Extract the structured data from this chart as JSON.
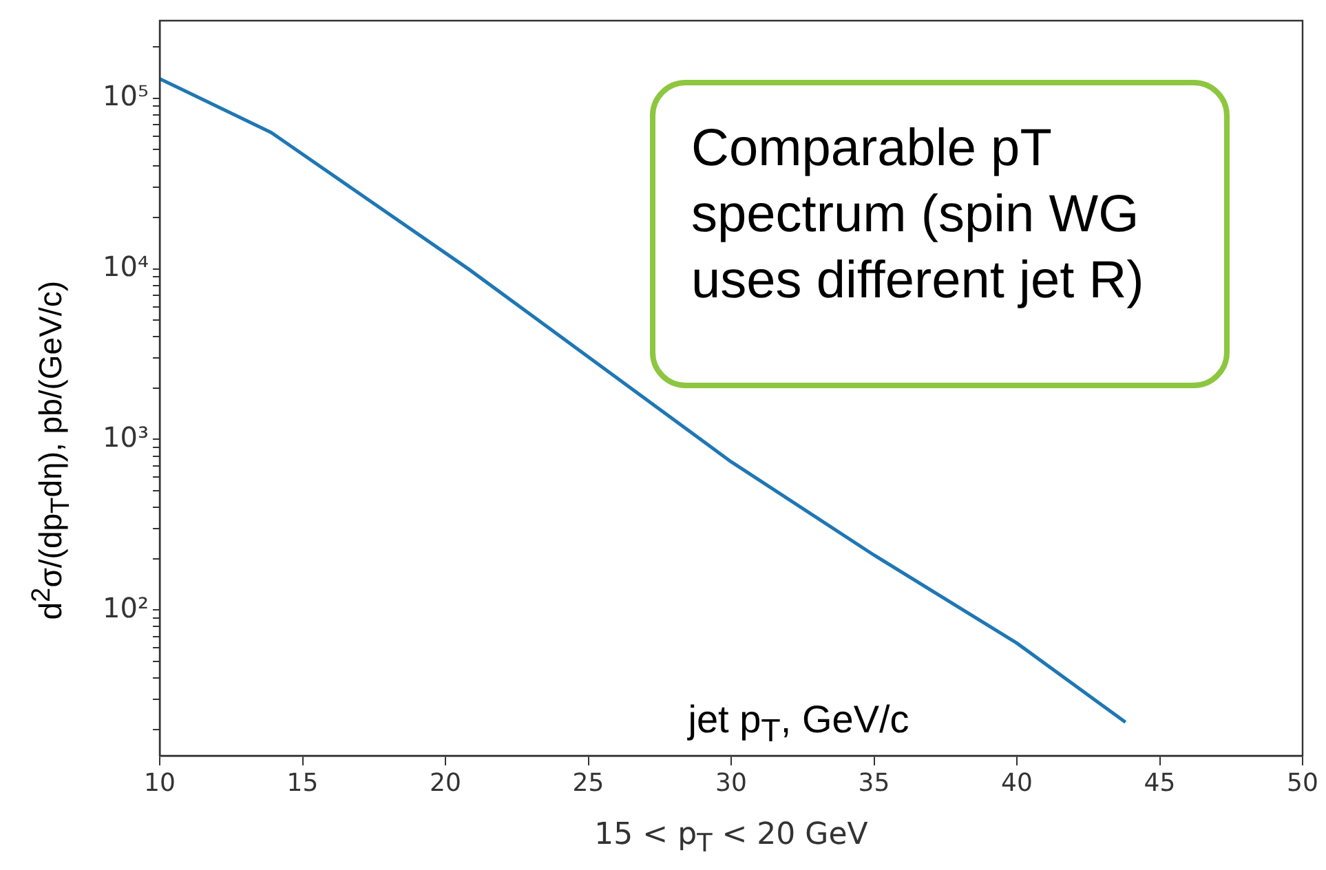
{
  "chart_data": {
    "type": "line",
    "xlabel": "15 < p$_{T}$ < 20 GeV",
    "ylabel": "d$^{2}$σ/(dp$_{T}$dη), pb/(GeV/c)",
    "x": [
      10,
      13.9,
      20.8,
      30,
      35,
      40,
      43.8
    ],
    "series": [
      {
        "color": "#1f77b4",
        "values": [
          130000,
          63000,
          10000,
          740,
          210,
          64,
          22
        ]
      }
    ],
    "log": "y",
    "xlim": [
      10,
      50
    ],
    "xticks": [
      10,
      15,
      20,
      25,
      30,
      35,
      40,
      45,
      50
    ],
    "ylim": [
      14,
      285000
    ],
    "yticks": [
      {
        "value": 20,
        "label": null
      },
      {
        "value": 30,
        "label": null
      },
      {
        "value": 40,
        "label": null
      },
      {
        "value": 50,
        "label": null
      },
      {
        "value": 60,
        "label": null
      },
      {
        "value": 70,
        "label": null
      },
      {
        "value": 80,
        "label": null
      },
      {
        "value": 90,
        "label": null
      },
      {
        "value": 100,
        "label": "10²"
      },
      {
        "value": 200,
        "label": null
      },
      {
        "value": 300,
        "label": null
      },
      {
        "value": 400,
        "label": null
      },
      {
        "value": 500,
        "label": null
      },
      {
        "value": 600,
        "label": null
      },
      {
        "value": 700,
        "label": null
      },
      {
        "value": 800,
        "label": null
      },
      {
        "value": 900,
        "label": null
      },
      {
        "value": 1000,
        "label": "10³"
      },
      {
        "value": 2000,
        "label": null
      },
      {
        "value": 3000,
        "label": null
      },
      {
        "value": 4000,
        "label": null
      },
      {
        "value": 5000,
        "label": null
      },
      {
        "value": 6000,
        "label": null
      },
      {
        "value": 7000,
        "label": null
      },
      {
        "value": 8000,
        "label": null
      },
      {
        "value": 9000,
        "label": null
      },
      {
        "value": 10000,
        "label": "10⁴"
      },
      {
        "value": 20000,
        "label": null
      },
      {
        "value": 30000,
        "label": null
      },
      {
        "value": 40000,
        "label": null
      },
      {
        "value": 50000,
        "label": null
      },
      {
        "value": 60000,
        "label": null
      },
      {
        "value": 70000,
        "label": null
      },
      {
        "value": 80000,
        "label": null
      },
      {
        "value": 90000,
        "label": null
      },
      {
        "value": 100000,
        "label": "10⁵"
      },
      {
        "value": 200000,
        "label": null
      }
    ],
    "grid": false,
    "legend": false,
    "marker": "none",
    "line_style": "solid",
    "annotations": [
      "jet p$_{T}$, GeV/c",
      "Comparable pT spectrum (spin WG uses different jet R)"
    ]
  }
}
